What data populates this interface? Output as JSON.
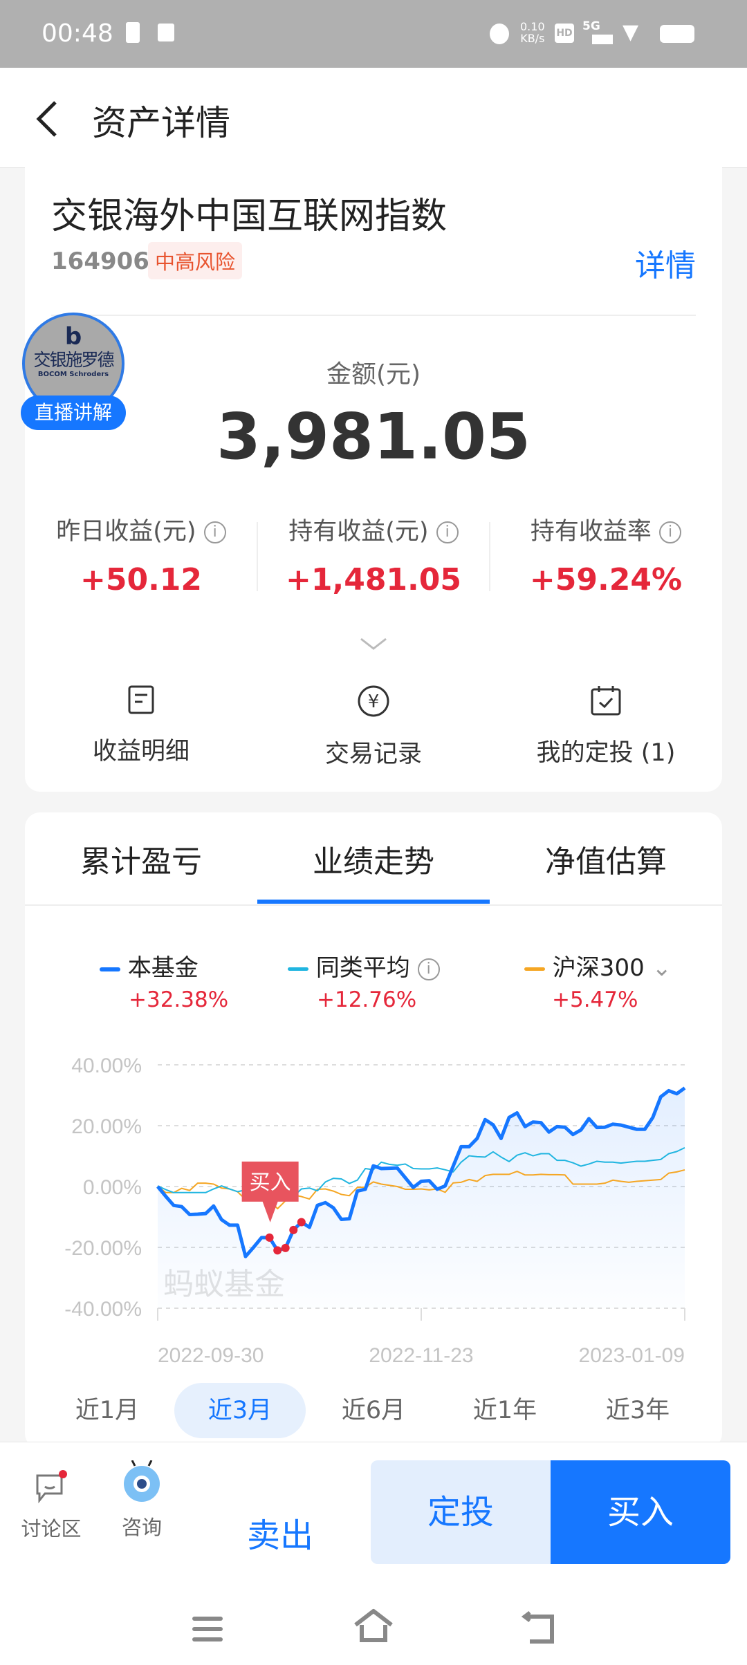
{
  "status_bar": {
    "time": "00:48",
    "net_speed": "0.10",
    "net_unit": "KB/s",
    "hd": "HD",
    "network": "5G"
  },
  "header": {
    "title": "资产详情"
  },
  "fund": {
    "name": "交银海外中国互联网指数",
    "code": "164906",
    "risk": "中高风险",
    "detail_link": "详情",
    "live_badge": "直播讲解",
    "logo_text": "交银施罗德",
    "logo_sub": "BOCOM Schroders",
    "amount_label": "金额(元)",
    "amount": "3,981.05",
    "stats": [
      {
        "label": "昨日收益(元)",
        "value": "+50.12"
      },
      {
        "label": "持有收益(元)",
        "value": "+1,481.05"
      },
      {
        "label": "持有收益率",
        "value": "+59.24%"
      }
    ],
    "actions": [
      {
        "label": "收益明细",
        "icon": "document-icon"
      },
      {
        "label": "交易记录",
        "icon": "yen-circle-icon"
      },
      {
        "label": "我的定投 (1)",
        "icon": "calendar-check-icon"
      }
    ]
  },
  "tabs": [
    {
      "label": "累计盈亏"
    },
    {
      "label": "业绩走势",
      "active": true
    },
    {
      "label": "净值估算"
    }
  ],
  "chart_data": {
    "type": "line",
    "legend": [
      {
        "name": "本基金",
        "value": "+32.38%",
        "color": "#1677ff"
      },
      {
        "name": "同类平均",
        "value": "+12.76%",
        "color": "#20b5e0"
      },
      {
        "name": "沪深300",
        "value": "+5.47%",
        "color": "#f5a623"
      }
    ],
    "y_ticks": [
      "40.00%",
      "20.00%",
      "0.00%",
      "-20.00%",
      "-40.00%"
    ],
    "ylim": [
      -40,
      40
    ],
    "x_ticks": [
      "2022-09-30",
      "2022-11-23",
      "2023-01-09"
    ],
    "watermark": "蚂蚁基金",
    "buy_marker_label": "买入",
    "buy_point_indices": [
      14,
      15,
      16,
      17,
      18
    ],
    "series": [
      {
        "name": "本基金",
        "values": [
          0,
          -3.2,
          -6.2,
          -6.6,
          -9.2,
          -9.1,
          -8.9,
          -6.4,
          -10.9,
          -12.7,
          -12.7,
          -23,
          -20,
          -16.8,
          -16.8,
          -21,
          -20.2,
          -14.3,
          -11.7,
          -13.4,
          -6.2,
          -5.3,
          -7,
          -10.8,
          -10.6,
          -1.5,
          -0.9,
          6.8,
          5.9,
          6,
          6.1,
          2.9,
          -0.3,
          1.7,
          1.9,
          -0.9,
          0.2,
          6.7,
          13.1,
          13.1,
          15.8,
          22,
          20.3,
          15.8,
          22.7,
          24.2,
          19.7,
          21.2,
          21,
          17.9,
          19.7,
          19.5,
          17.1,
          18.6,
          22.3,
          19.4,
          19.5,
          20.5,
          20.2,
          19.5,
          18.8,
          18.8,
          22.7,
          29.5,
          31.5,
          30.5,
          32.38
        ]
      },
      {
        "name": "同类平均",
        "values": [
          0.2,
          -1,
          -2,
          -2,
          -2,
          -2,
          -2,
          -0.8,
          0.2,
          -0.8,
          -1.7,
          -1.1,
          -3.8,
          -2.5,
          -1.8,
          -2,
          -3.2,
          -3.3,
          -0.8,
          -0.5,
          -1.4,
          1.5,
          2.7,
          2.5,
          1,
          2.1,
          5.9,
          5.5,
          8,
          7.3,
          7,
          7.4,
          5.9,
          5.8,
          5.8,
          6.1,
          5.5,
          4.8,
          8,
          10.1,
          9.8,
          9.7,
          11.4,
          9.7,
          8.2,
          10.3,
          11.1,
          10.1,
          10.8,
          10.8,
          8.6,
          8.6,
          7.8,
          6.7,
          7.4,
          8.3,
          8,
          8,
          7.7,
          8,
          8.3,
          8.3,
          8.6,
          8.9,
          10.8,
          11.5,
          12.76
        ]
      },
      {
        "name": "沪深300",
        "values": [
          0.2,
          -2,
          -2,
          -0.6,
          -1.3,
          1.1,
          1.1,
          0.8,
          -0.5,
          -0.8,
          -1.7,
          -4.3,
          -4.1,
          -3.9,
          -4.3,
          -7.3,
          -4.7,
          -2.8,
          -3.3,
          -4.1,
          -0.9,
          -0.8,
          -1.5,
          -2.6,
          -3,
          -0.3,
          -0.2,
          1.5,
          0.8,
          0.4,
          0,
          -0.9,
          -0.9,
          -0.8,
          -1.1,
          -0.8,
          -1.9,
          1.2,
          1.4,
          2.3,
          1.7,
          3.6,
          4,
          4,
          4,
          5,
          3.8,
          3.8,
          4,
          3.9,
          3.9,
          3.8,
          0.8,
          0.8,
          0.8,
          0.8,
          1.1,
          2.1,
          1.7,
          1.4,
          1.7,
          1.9,
          2.1,
          2.3,
          4.4,
          4.8,
          5.47
        ]
      }
    ],
    "grid": true
  },
  "periods": [
    {
      "label": "近1月"
    },
    {
      "label": "近3月",
      "active": true
    },
    {
      "label": "近6月"
    },
    {
      "label": "近1年"
    },
    {
      "label": "近3年"
    }
  ],
  "bottom": {
    "discuss": "讨论区",
    "consult": "咨询",
    "sell": "卖出",
    "sip": "定投",
    "buy": "买入"
  },
  "colors": {
    "primary": "#1677ff",
    "gain": "#e5273a",
    "risk_bg": "#fdeeed",
    "risk_text": "#e8542f"
  }
}
